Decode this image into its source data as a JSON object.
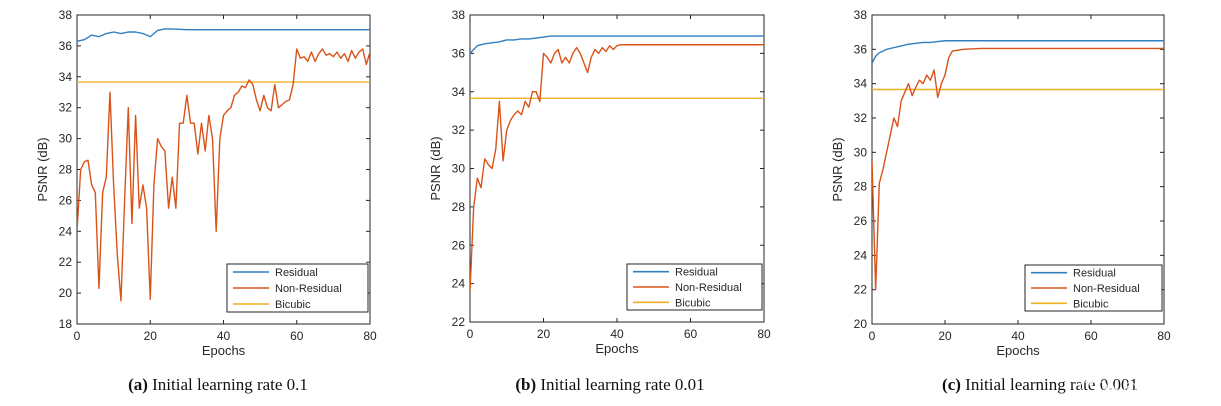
{
  "colors": {
    "residual": "#2f7fc1",
    "non_residual": "#d95319",
    "bicubic": "#edb120"
  },
  "watermark": "CSDN @张大猩猩行",
  "chart_data": [
    {
      "type": "line",
      "caption_label": "(a)",
      "caption_text": " Initial learning rate 0.1",
      "xlabel": "Epochs",
      "ylabel": "PSNR (dB)",
      "xlim": [
        0,
        80
      ],
      "ylim": [
        18,
        38
      ],
      "xticks": [
        0,
        20,
        40,
        60,
        80
      ],
      "yticks": [
        18,
        20,
        22,
        24,
        26,
        28,
        30,
        32,
        34,
        36,
        38
      ],
      "legend_position": "bottom-right",
      "grid": false,
      "series": [
        {
          "name": "Residual",
          "color_key": "residual",
          "x": [
            0,
            2,
            4,
            6,
            8,
            10,
            12,
            14,
            16,
            18,
            20,
            22,
            24,
            26,
            30,
            40,
            50,
            60,
            70,
            80
          ],
          "y": [
            36.3,
            36.4,
            36.7,
            36.6,
            36.8,
            36.9,
            36.8,
            36.9,
            36.9,
            36.8,
            36.6,
            37.0,
            37.1,
            37.1,
            37.05,
            37.05,
            37.05,
            37.05,
            37.05,
            37.05
          ]
        },
        {
          "name": "Non-Residual",
          "color_key": "non_residual",
          "x": [
            0,
            1,
            2,
            3,
            4,
            5,
            6,
            7,
            8,
            9,
            10,
            11,
            12,
            13,
            14,
            15,
            16,
            17,
            18,
            19,
            20,
            21,
            22,
            23,
            24,
            25,
            26,
            27,
            28,
            29,
            30,
            31,
            32,
            33,
            34,
            35,
            36,
            37,
            38,
            39,
            40,
            41,
            42,
            43,
            44,
            45,
            46,
            47,
            48,
            49,
            50,
            51,
            52,
            53,
            54,
            55,
            56,
            57,
            58,
            59,
            60,
            61,
            62,
            63,
            64,
            65,
            66,
            67,
            68,
            69,
            70,
            71,
            72,
            73,
            74,
            75,
            76,
            77,
            78,
            79,
            80
          ],
          "y": [
            24.0,
            28.0,
            28.5,
            28.6,
            27.0,
            26.5,
            20.3,
            26.5,
            27.5,
            33.0,
            27.0,
            22.5,
            19.5,
            26.0,
            32.0,
            24.5,
            31.5,
            25.5,
            27.0,
            25.5,
            19.6,
            27.0,
            30.0,
            29.5,
            29.2,
            25.5,
            27.5,
            25.5,
            31.0,
            31.0,
            32.8,
            31.0,
            31.0,
            29.0,
            31.0,
            29.2,
            31.5,
            30.0,
            24.0,
            30.0,
            31.5,
            31.8,
            32.0,
            32.8,
            33.0,
            33.4,
            33.3,
            33.8,
            33.5,
            32.5,
            31.8,
            32.8,
            32.0,
            31.8,
            33.5,
            32.0,
            32.2,
            32.4,
            32.5,
            33.5,
            35.8,
            35.2,
            35.3,
            35.0,
            35.6,
            35.0,
            35.5,
            35.8,
            35.4,
            35.5,
            35.3,
            35.6,
            35.2,
            35.5,
            35.0,
            35.7,
            35.2,
            35.6,
            35.8,
            34.8,
            35.6
          ]
        },
        {
          "name": "Bicubic",
          "color_key": "bicubic",
          "x": [
            0,
            80
          ],
          "y": [
            33.66,
            33.66
          ]
        }
      ]
    },
    {
      "type": "line",
      "caption_label": "(b)",
      "caption_text": " Initial learning rate 0.01",
      "xlabel": "Epochs",
      "ylabel": "PSNR (dB)",
      "xlim": [
        0,
        80
      ],
      "ylim": [
        22,
        38
      ],
      "xticks": [
        0,
        20,
        40,
        60,
        80
      ],
      "yticks": [
        22,
        24,
        26,
        28,
        30,
        32,
        34,
        36,
        38
      ],
      "legend_position": "bottom-right",
      "grid": false,
      "series": [
        {
          "name": "Residual",
          "color_key": "residual",
          "x": [
            0,
            1,
            2,
            4,
            6,
            8,
            10,
            12,
            14,
            16,
            18,
            20,
            22,
            26,
            30,
            40,
            50,
            60,
            70,
            80
          ],
          "y": [
            36.0,
            36.2,
            36.4,
            36.5,
            36.55,
            36.6,
            36.7,
            36.7,
            36.75,
            36.75,
            36.8,
            36.85,
            36.9,
            36.9,
            36.9,
            36.9,
            36.9,
            36.9,
            36.9,
            36.9
          ]
        },
        {
          "name": "Non-Residual",
          "color_key": "non_residual",
          "x": [
            0,
            1,
            2,
            3,
            4,
            5,
            6,
            7,
            8,
            9,
            10,
            11,
            12,
            13,
            14,
            15,
            16,
            17,
            18,
            19,
            20,
            21,
            22,
            23,
            24,
            25,
            26,
            27,
            28,
            29,
            30,
            31,
            32,
            33,
            34,
            35,
            36,
            37,
            38,
            39,
            40,
            41,
            42,
            45,
            50,
            60,
            70,
            80
          ],
          "y": [
            23.6,
            28.0,
            29.5,
            29.0,
            30.5,
            30.2,
            30.0,
            31.0,
            33.5,
            30.4,
            32.0,
            32.5,
            32.8,
            33.0,
            32.8,
            33.5,
            33.2,
            34.0,
            34.0,
            33.5,
            36.0,
            35.8,
            35.5,
            36.0,
            36.2,
            35.5,
            35.8,
            35.5,
            36.0,
            36.3,
            36.0,
            35.5,
            35.0,
            35.8,
            36.2,
            36.0,
            36.3,
            36.1,
            36.4,
            36.2,
            36.4,
            36.45,
            36.45,
            36.45,
            36.45,
            36.45,
            36.45,
            36.45
          ]
        },
        {
          "name": "Bicubic",
          "color_key": "bicubic",
          "x": [
            0,
            80
          ],
          "y": [
            33.66,
            33.66
          ]
        }
      ]
    },
    {
      "type": "line",
      "caption_label": "(c)",
      "caption_text": " Initial learning rate 0.001",
      "xlabel": "Epochs",
      "ylabel": "PSNR (dB)",
      "xlim": [
        0,
        80
      ],
      "ylim": [
        20,
        38
      ],
      "xticks": [
        0,
        20,
        40,
        60,
        80
      ],
      "yticks": [
        20,
        22,
        24,
        26,
        28,
        30,
        32,
        34,
        36,
        38
      ],
      "legend_position": "bottom-right",
      "grid": false,
      "series": [
        {
          "name": "Residual",
          "color_key": "residual",
          "x": [
            0,
            1,
            2,
            3,
            4,
            6,
            8,
            10,
            12,
            14,
            16,
            18,
            20,
            24,
            30,
            40,
            50,
            60,
            70,
            80
          ],
          "y": [
            35.2,
            35.6,
            35.8,
            35.9,
            36.0,
            36.1,
            36.2,
            36.3,
            36.35,
            36.4,
            36.4,
            36.45,
            36.5,
            36.5,
            36.5,
            36.5,
            36.5,
            36.5,
            36.5,
            36.5
          ]
        },
        {
          "name": "Non-Residual",
          "color_key": "non_residual",
          "x": [
            0,
            1,
            2,
            3,
            4,
            5,
            6,
            7,
            8,
            9,
            10,
            11,
            12,
            13,
            14,
            15,
            16,
            17,
            18,
            19,
            20,
            21,
            22,
            25,
            30,
            40,
            50,
            60,
            70,
            80
          ],
          "y": [
            29.5,
            22.0,
            28.2,
            29.0,
            30.0,
            31.0,
            32.0,
            31.5,
            33.0,
            33.5,
            34.0,
            33.3,
            33.8,
            34.2,
            34.0,
            34.5,
            34.2,
            34.8,
            33.2,
            34.0,
            34.5,
            35.5,
            35.9,
            36.0,
            36.05,
            36.05,
            36.05,
            36.05,
            36.05,
            36.05
          ]
        },
        {
          "name": "Bicubic",
          "color_key": "bicubic",
          "x": [
            0,
            80
          ],
          "y": [
            33.66,
            33.66
          ]
        }
      ]
    }
  ]
}
